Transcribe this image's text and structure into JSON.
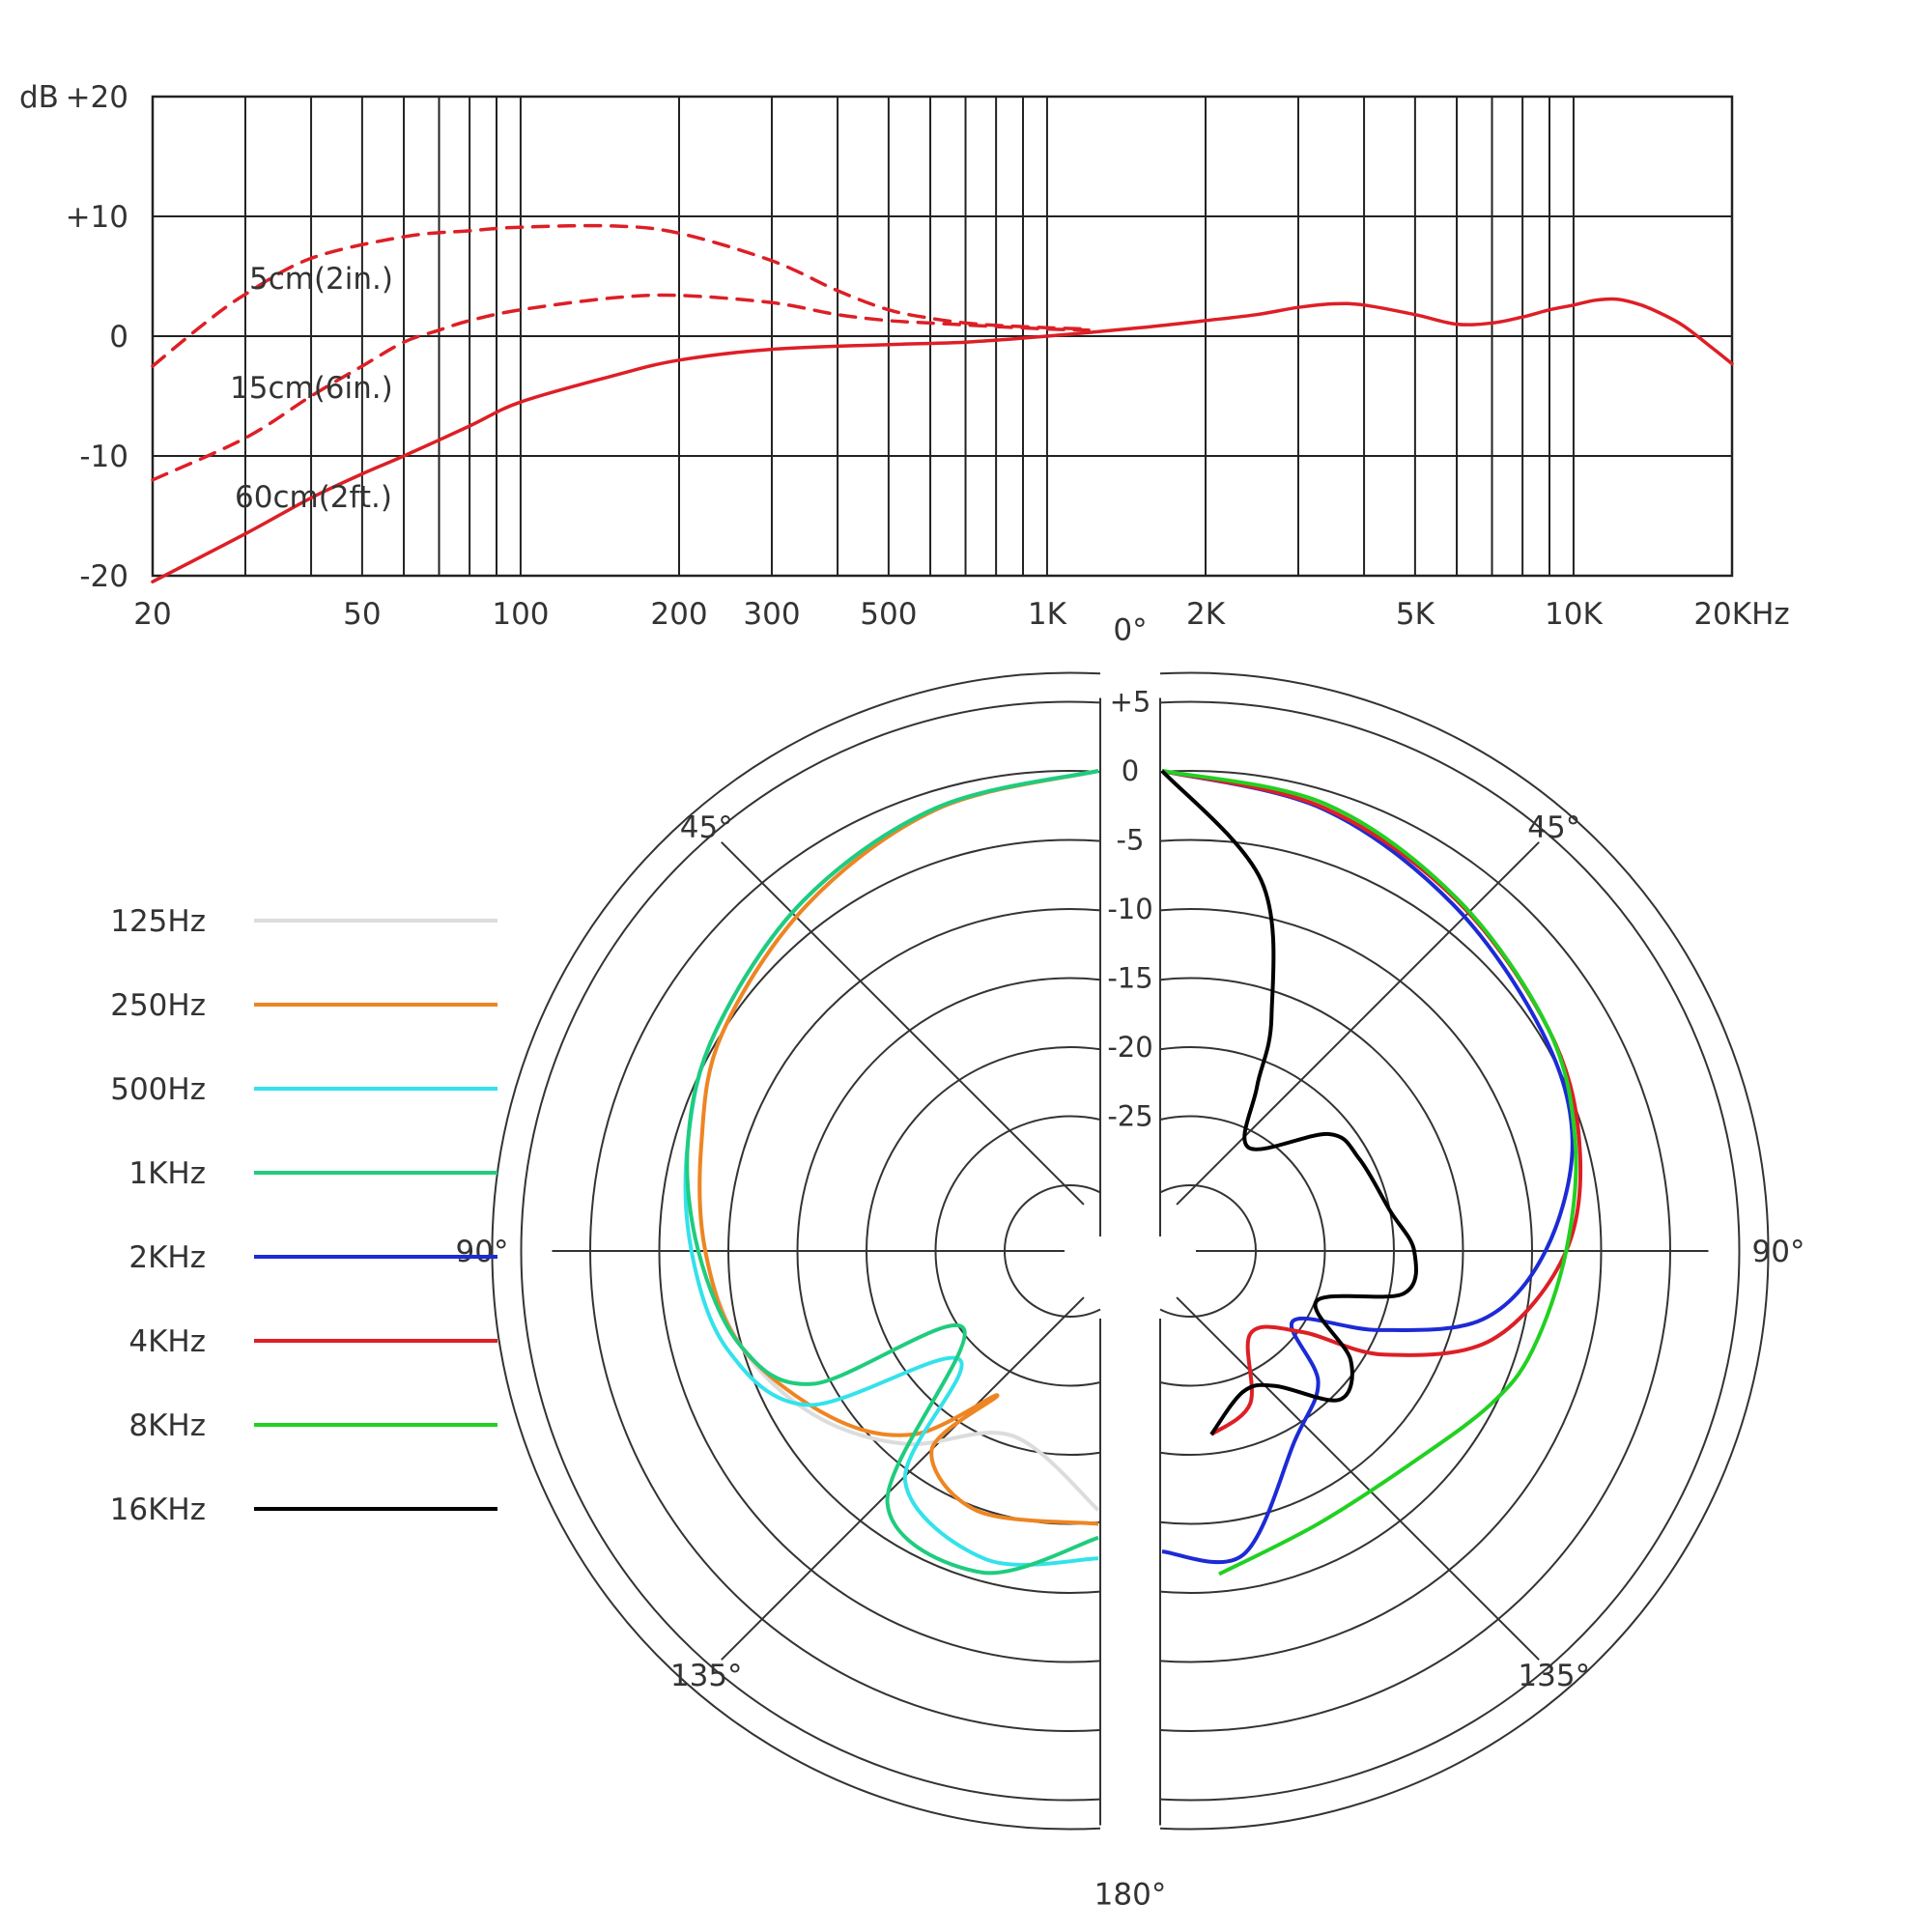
{
  "chart_data": [
    {
      "type": "line",
      "ylabel": "dB",
      "xscale": "log",
      "xlim": [
        20,
        20000
      ],
      "ylim": [
        -20,
        20
      ],
      "grid": true,
      "yticks": [
        {
          "v": 20,
          "label": "+20"
        },
        {
          "v": 10,
          "label": "+10"
        },
        {
          "v": 0,
          "label": "0"
        },
        {
          "v": -10,
          "label": "-10"
        },
        {
          "v": -20,
          "label": "-20"
        }
      ],
      "xticks": [
        {
          "v": 20,
          "label": "20"
        },
        {
          "v": 50,
          "label": "50"
        },
        {
          "v": 100,
          "label": "100"
        },
        {
          "v": 200,
          "label": "200"
        },
        {
          "v": 300,
          "label": "300"
        },
        {
          "v": 500,
          "label": "500"
        },
        {
          "v": 1000,
          "label": "1K"
        },
        {
          "v": 2000,
          "label": "2K"
        },
        {
          "v": 5000,
          "label": "5K"
        },
        {
          "v": 10000,
          "label": "10K"
        },
        {
          "v": 20000,
          "label": "20KHz"
        }
      ],
      "grid_x": [
        30,
        40,
        50,
        60,
        70,
        80,
        90,
        100,
        200,
        300,
        400,
        500,
        600,
        700,
        800,
        900,
        1000,
        2000,
        3000,
        4000,
        5000,
        6000,
        7000,
        8000,
        9000,
        10000,
        20000
      ],
      "color": "#dd1f26",
      "series": [
        {
          "name": "5cm(2in.)",
          "style": "dashed",
          "points": [
            [
              20,
              -2.5
            ],
            [
              25,
              1
            ],
            [
              30,
              3.5
            ],
            [
              40,
              6.5
            ],
            [
              60,
              8.3
            ],
            [
              80,
              8.8
            ],
            [
              100,
              9.1
            ],
            [
              150,
              9.2
            ],
            [
              200,
              8.6
            ],
            [
              300,
              6.3
            ],
            [
              400,
              3.8
            ],
            [
              500,
              2.2
            ],
            [
              600,
              1.5
            ],
            [
              700,
              1.1
            ],
            [
              800,
              0.9
            ],
            [
              900,
              0.8
            ],
            [
              1000,
              0.7
            ],
            [
              1200,
              0.6
            ]
          ]
        },
        {
          "name": "15cm(6in.)",
          "style": "dashed",
          "points": [
            [
              20,
              -12
            ],
            [
              30,
              -8.5
            ],
            [
              40,
              -5
            ],
            [
              50,
              -2.5
            ],
            [
              60,
              -0.5
            ],
            [
              70,
              0.5
            ],
            [
              80,
              1.3
            ],
            [
              100,
              2.2
            ],
            [
              150,
              3.2
            ],
            [
              200,
              3.4
            ],
            [
              300,
              2.8
            ],
            [
              400,
              1.8
            ],
            [
              500,
              1.3
            ],
            [
              600,
              1.1
            ],
            [
              800,
              0.8
            ],
            [
              1000,
              0.6
            ],
            [
              1200,
              0.5
            ]
          ]
        },
        {
          "name": "60cm(2ft.)",
          "style": "solid",
          "points": [
            [
              20,
              -20.5
            ],
            [
              30,
              -16.5
            ],
            [
              40,
              -13.5
            ],
            [
              50,
              -11.5
            ],
            [
              60,
              -10
            ],
            [
              80,
              -7.5
            ],
            [
              100,
              -5.5
            ],
            [
              150,
              -3.3
            ],
            [
              200,
              -2
            ],
            [
              300,
              -1.1
            ],
            [
              500,
              -0.7
            ],
            [
              700,
              -0.5
            ],
            [
              1000,
              0
            ],
            [
              1500,
              0.7
            ],
            [
              2000,
              1.3
            ],
            [
              2500,
              1.8
            ],
            [
              3000,
              2.4
            ],
            [
              3500,
              2.7
            ],
            [
              4000,
              2.6
            ],
            [
              5000,
              1.8
            ],
            [
              6000,
              1.0
            ],
            [
              7000,
              1.1
            ],
            [
              8000,
              1.6
            ],
            [
              9000,
              2.2
            ],
            [
              10000,
              2.6
            ],
            [
              11000,
              3.0
            ],
            [
              12000,
              3.1
            ],
            [
              13000,
              2.8
            ],
            [
              14000,
              2.3
            ],
            [
              16000,
              1.0
            ],
            [
              18000,
              -0.7
            ],
            [
              20000,
              -2.3
            ]
          ]
        }
      ]
    },
    {
      "type": "polar",
      "angle_labels": [
        {
          "deg": 0,
          "label": "0°"
        },
        {
          "deg": 45,
          "label": "45°"
        },
        {
          "deg": 90,
          "label": "90°"
        },
        {
          "deg": 135,
          "label": "135°"
        },
        {
          "deg": 180,
          "label": "180°"
        },
        {
          "deg": -45,
          "label": "45°"
        },
        {
          "deg": -90,
          "label": "90°"
        },
        {
          "deg": -135,
          "label": "135°"
        }
      ],
      "rings": [
        {
          "v": 5,
          "label": "+5"
        },
        {
          "v": 0,
          "label": "0"
        },
        {
          "v": -5,
          "label": "-5"
        },
        {
          "v": -10,
          "label": "-10"
        },
        {
          "v": -15,
          "label": "-15"
        },
        {
          "v": -20,
          "label": "-20"
        },
        {
          "v": -25,
          "label": "-25"
        }
      ],
      "rlim": [
        -30,
        5
      ],
      "legend_position": "left",
      "series": [
        {
          "name": "125Hz",
          "color": "#dcdcdc",
          "side": "left",
          "points": [
            [
              0,
              0
            ],
            [
              20,
              -0.7
            ],
            [
              40,
              -2
            ],
            [
              60,
              -3.3
            ],
            [
              75,
              -5
            ],
            [
              90,
              -6.3
            ],
            [
              105,
              -8
            ],
            [
              120,
              -11
            ],
            [
              135,
              -15
            ],
            [
              155,
              -20
            ],
            [
              180,
              -16
            ]
          ]
        },
        {
          "name": "250Hz",
          "color": "#ee8522",
          "side": "left",
          "points": [
            [
              0,
              0
            ],
            [
              20,
              -0.7
            ],
            [
              40,
              -2
            ],
            [
              60,
              -3.3
            ],
            [
              75,
              -5
            ],
            [
              90,
              -6.3
            ],
            [
              105,
              -8
            ],
            [
              122,
              -12
            ],
            [
              135,
              -16
            ],
            [
              145,
              -22
            ],
            [
              140,
              -16
            ],
            [
              155,
              -14
            ],
            [
              180,
              -15
            ]
          ]
        },
        {
          "name": "500Hz",
          "color": "#33e2ea",
          "side": "left",
          "points": [
            [
              0,
              0
            ],
            [
              20,
              -0.6
            ],
            [
              40,
              -1.6
            ],
            [
              60,
              -2.8
            ],
            [
              75,
              -4
            ],
            [
              90,
              -5.3
            ],
            [
              105,
              -7
            ],
            [
              118,
              -11
            ],
            [
              128,
              -22
            ],
            [
              140,
              -13
            ],
            [
              160,
              -11
            ],
            [
              180,
              -12.5
            ]
          ]
        },
        {
          "name": "1KHz",
          "color": "#1fcc7e",
          "side": "left",
          "points": [
            [
              0,
              0
            ],
            [
              20,
              -0.6
            ],
            [
              40,
              -1.6
            ],
            [
              60,
              -2.8
            ],
            [
              75,
              -4
            ],
            [
              90,
              -5.8
            ],
            [
              105,
              -8
            ],
            [
              115,
              -12
            ],
            [
              120,
              -23.5
            ],
            [
              140,
              -11
            ],
            [
              160,
              -10
            ],
            [
              180,
              -14
            ]
          ]
        },
        {
          "name": "2KHz",
          "color": "#1c2bd5",
          "side": "right",
          "points": [
            [
              0,
              0
            ],
            [
              20,
              -0.7
            ],
            [
              40,
              -2
            ],
            [
              60,
              -3
            ],
            [
              75,
              -4
            ],
            [
              90,
              -7
            ],
            [
              102,
              -11
            ],
            [
              110,
              -18
            ],
            [
              118,
              -24
            ],
            [
              130,
              -20
            ],
            [
              145,
              -18
            ],
            [
              165,
              -12
            ],
            [
              180,
              -13
            ]
          ]
        },
        {
          "name": "4KHz",
          "color": "#dd1f26",
          "side": "right",
          "points": [
            [
              0,
              0
            ],
            [
              20,
              -0.6
            ],
            [
              40,
              -1.6
            ],
            [
              60,
              -2.5
            ],
            [
              75,
              -3.5
            ],
            [
              90,
              -5.5
            ],
            [
              105,
              -10
            ],
            [
              115,
              -17
            ],
            [
              120,
              -23
            ],
            [
              133,
              -26
            ],
            [
              150,
              -22
            ],
            [
              165,
              -21
            ]
          ]
        },
        {
          "name": "8KHz",
          "color": "#22d022",
          "side": "right",
          "points": [
            [
              0,
              0
            ],
            [
              20,
              -0.3
            ],
            [
              40,
              -1.5
            ],
            [
              60,
              -2.5
            ],
            [
              75,
              -3.8
            ],
            [
              90,
              -5.5
            ],
            [
              105,
              -7
            ],
            [
              115,
              -8.5
            ],
            [
              130,
              -11
            ],
            [
              150,
              -12
            ],
            [
              170,
              -11
            ]
          ]
        },
        {
          "name": "16KHz",
          "color": "#000000",
          "side": "right",
          "points": [
            [
              0,
              0
            ],
            [
              15,
              -7
            ],
            [
              25,
              -16
            ],
            [
              30,
              -21
            ],
            [
              40,
              -25
            ],
            [
              55,
              -20
            ],
            [
              65,
              -19
            ],
            [
              80,
              -18
            ],
            [
              90,
              -16.5
            ],
            [
              100,
              -17
            ],
            [
              108,
              -23
            ],
            [
              120,
              -19
            ],
            [
              130,
              -18
            ],
            [
              140,
              -22
            ],
            [
              150,
              -23
            ],
            [
              165,
              -21
            ]
          ]
        }
      ]
    }
  ],
  "chart1": {
    "ylabel": "dB",
    "curve_labels": [
      "5cm(2in.)",
      "15cm(6in.)",
      "60cm(2ft.)"
    ]
  }
}
